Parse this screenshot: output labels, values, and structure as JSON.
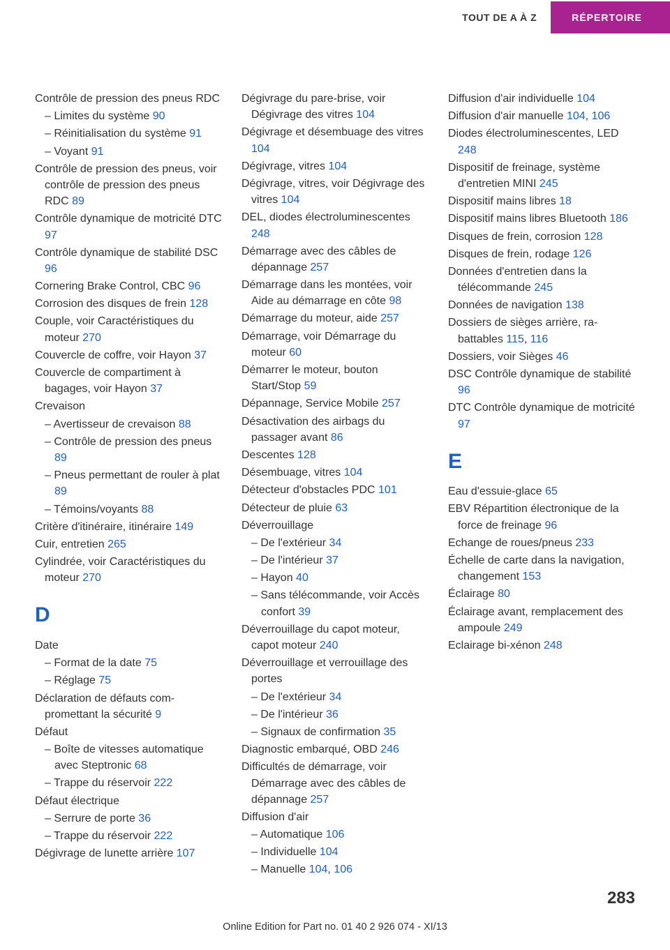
{
  "header": {
    "left": "TOUT DE A À Z",
    "right": "RÉPERTOIRE"
  },
  "colors": {
    "accent_bg": "#a8238f",
    "accent_text": "#ffffff",
    "link": "#2060c0",
    "body_text": "#333333",
    "page_bg": "#ffffff"
  },
  "page_number": "283",
  "footer": "Online Edition for Part no. 01 40 2 926 074 - XI/13",
  "entries": [
    {
      "t": "Contrôle de pression des pneus RDC"
    },
    {
      "t": "– Limites du système ",
      "p": "90",
      "sub": true
    },
    {
      "t": "– Réinitialisation du sys­tème ",
      "p": "91",
      "sub": true
    },
    {
      "t": "– Voyant ",
      "p": "91",
      "sub": true
    },
    {
      "t": "Contrôle de pression des pneus, voir contrôle de pres­sion des pneus RDC ",
      "p": "89"
    },
    {
      "t": "Contrôle dynamique de motri­cité DTC ",
      "p": "97"
    },
    {
      "t": "Contrôle dynamique de stabi­lité DSC ",
      "p": "96"
    },
    {
      "t": "Cornering Brake Control, CBC ",
      "p": "96"
    },
    {
      "t": "Corrosion des disques de frein ",
      "p": "128"
    },
    {
      "t": "Couple, voir Caractéristiques du moteur ",
      "p": "270"
    },
    {
      "t": "Couvercle de coffre, voir Hayon ",
      "p": "37"
    },
    {
      "t": "Couvercle de compartiment à bagages, voir Hayon ",
      "p": "37"
    },
    {
      "t": "Crevaison"
    },
    {
      "t": "– Avertisseur de crevaison ",
      "p": "88",
      "sub": true
    },
    {
      "t": "– Contrôle de pression des pneus ",
      "p": "89",
      "sub": true
    },
    {
      "t": "– Pneus permettant de rouler à plat ",
      "p": "89",
      "sub": true
    },
    {
      "t": "– Témoins/voyants ",
      "p": "88",
      "sub": true
    },
    {
      "t": "Critère d'itinéraire, itiné­raire ",
      "p": "149"
    },
    {
      "t": "Cuir, entretien ",
      "p": "265"
    },
    {
      "t": "Cylindrée, voir Caractéristi­ques du moteur ",
      "p": "270"
    },
    {
      "letter": "D"
    },
    {
      "t": "Date"
    },
    {
      "t": "– Format de la date ",
      "p": "75",
      "sub": true
    },
    {
      "t": "– Réglage ",
      "p": "75",
      "sub": true
    },
    {
      "t": "Déclaration de défauts com­promettant la sécurité ",
      "p": "9"
    },
    {
      "t": "Défaut"
    },
    {
      "t": "– Boîte de vitesses automati­que avec Steptronic ",
      "p": "68",
      "sub": true
    },
    {
      "t": "– Trappe du réservoir ",
      "p": "222",
      "sub": true
    },
    {
      "t": "Défaut électrique"
    },
    {
      "t": "– Serrure de porte ",
      "p": "36",
      "sub": true
    },
    {
      "t": "– Trappe du réservoir ",
      "p": "222",
      "sub": true
    },
    {
      "t": "Dégivrage de lunette ar­rière ",
      "p": "107"
    },
    {
      "t": "Dégivrage du pare-brise, voir Dégivrage des vitres ",
      "p": "104"
    },
    {
      "t": "Dégivrage et désembuage des vitres ",
      "p": "104"
    },
    {
      "t": "Dégivrage, vitres ",
      "p": "104"
    },
    {
      "t": "Dégivrage, vitres, voir Dégi­vrage des vitres ",
      "p": "104"
    },
    {
      "t": "DEL, diodes électrolumines­centes ",
      "p": "248"
    },
    {
      "t": "Démarrage avec des câbles de dépannage ",
      "p": "257"
    },
    {
      "t": "Démarrage dans les montées, voir Aide au démarrage en côte ",
      "p": "98"
    },
    {
      "t": "Démarrage du moteur, aide ",
      "p": "257"
    },
    {
      "t": "Démarrage, voir Démarrage du moteur ",
      "p": "60"
    },
    {
      "t": "Démarrer le moteur, bouton Start/Stop ",
      "p": "59"
    },
    {
      "t": "Dépannage, Service Mo­bile ",
      "p": "257"
    },
    {
      "t": "Désactivation des airbags du passager avant ",
      "p": "86"
    },
    {
      "t": "Descentes ",
      "p": "128"
    },
    {
      "t": "Désembuage, vitres ",
      "p": "104"
    },
    {
      "t": "Détecteur d'obstacles PDC ",
      "p": "101"
    },
    {
      "t": "Détecteur de pluie ",
      "p": "63"
    },
    {
      "t": "Déverrouillage"
    },
    {
      "t": "– De l'extérieur ",
      "p": "34",
      "sub": true
    },
    {
      "t": "– De l'intérieur ",
      "p": "37",
      "sub": true
    },
    {
      "t": "– Hayon ",
      "p": "40",
      "sub": true
    },
    {
      "t": "– Sans télécommande, voir Accès confort ",
      "p": "39",
      "sub": true
    },
    {
      "t": "Déverrouillage du capot mo­teur, capot moteur ",
      "p": "240"
    },
    {
      "t": "Déverrouillage et verrouillage des portes"
    },
    {
      "t": "– De l'extérieur ",
      "p": "34",
      "sub": true
    },
    {
      "t": "– De l'intérieur ",
      "p": "36",
      "sub": true
    },
    {
      "t": "– Signaux de confirmation ",
      "p": "35",
      "sub": true
    },
    {
      "t": "Diagnostic embarqué, OBD ",
      "p": "246"
    },
    {
      "t": "Difficultés de démarrage, voir Démarrage avec des câbles de dépannage ",
      "p": "257"
    },
    {
      "t": "Diffusion d'air"
    },
    {
      "t": "– Automatique ",
      "p": "106",
      "sub": true
    },
    {
      "t": "– Individuelle ",
      "p": "104",
      "sub": true
    },
    {
      "t": "– Manuelle ",
      "p": "104",
      "p2": "106",
      "sub": true
    },
    {
      "t": "Diffusion d'air indivi­duelle ",
      "p": "104"
    },
    {
      "t": "Diffusion d'air ma­nuelle ",
      "p": "104",
      "p2": "106"
    },
    {
      "t": "Diodes électroluminescentes, LED ",
      "p": "248"
    },
    {
      "t": "Dispositif de freinage, système d'entretien MINI ",
      "p": "245"
    },
    {
      "t": "Dispositif mains libres ",
      "p": "18"
    },
    {
      "t": "Dispositif mains libres Blue­tooth ",
      "p": "186"
    },
    {
      "t": "Disques de frein, corro­sion ",
      "p": "128"
    },
    {
      "t": "Disques de frein, rodage ",
      "p": "126"
    },
    {
      "t": "Données d'entretien dans la télécommande ",
      "p": "245"
    },
    {
      "t": "Données de navigation ",
      "p": "138"
    },
    {
      "t": "Dossiers de sièges arrière, ra­battables ",
      "p": "115",
      "p2": "116"
    },
    {
      "t": "Dossiers, voir Sièges ",
      "p": "46"
    },
    {
      "t": "DSC Contrôle dynamique de stabilité ",
      "p": "96"
    },
    {
      "t": "DTC Contrôle dynamique de motricité ",
      "p": "97"
    },
    {
      "letter": "E"
    },
    {
      "t": "Eau d'essuie-glace ",
      "p": "65"
    },
    {
      "t": "EBV Répartition électronique de la force de freinage ",
      "p": "96"
    },
    {
      "t": "Echange de roues/pneus ",
      "p": "233"
    },
    {
      "t": "Échelle de carte dans la navi­gation, changement ",
      "p": "153"
    },
    {
      "t": "Éclairage ",
      "p": "80"
    },
    {
      "t": "Éclairage avant, remplace­ment des ampoule ",
      "p": "249"
    },
    {
      "t": "Eclairage bi-xénon ",
      "p": "248"
    }
  ]
}
